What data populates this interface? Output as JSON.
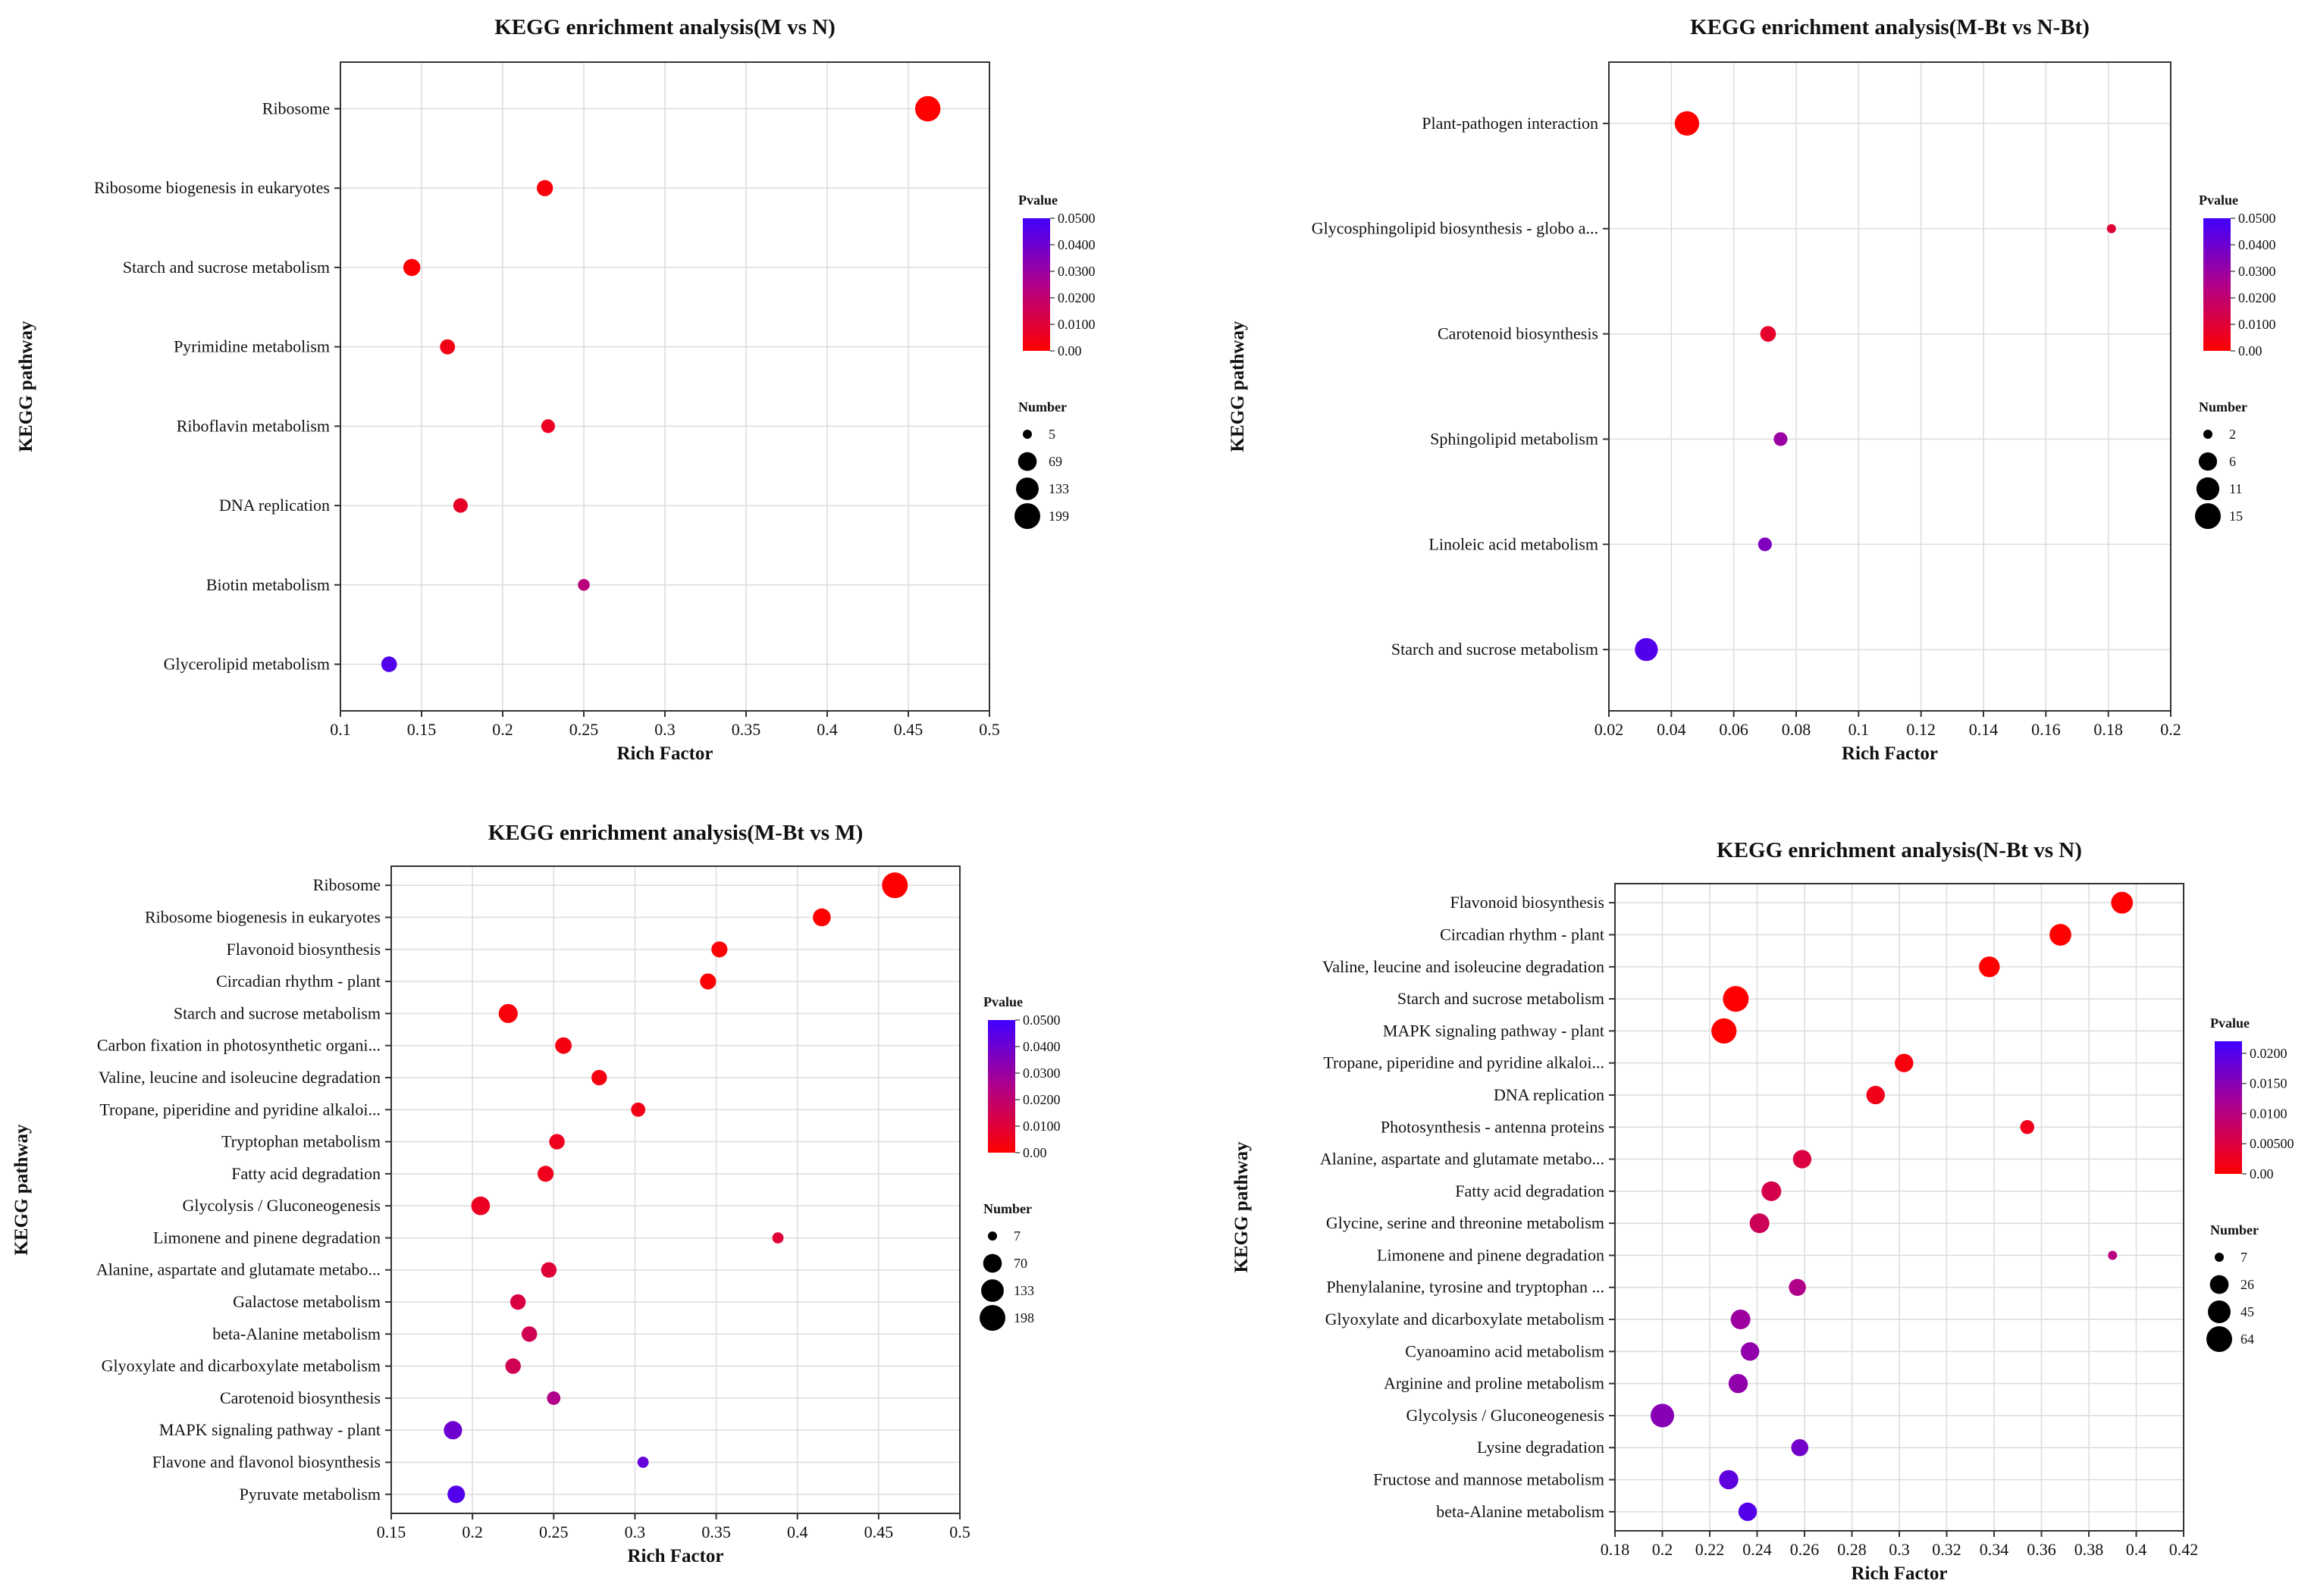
{
  "colors": {
    "low_p": "#ff0000",
    "high_p": "#4000ff",
    "grid": "#dcdcdc",
    "axis": "#333333"
  },
  "chart_data": [
    {
      "type": "scatter",
      "title": "KEGG enrichment analysis(M vs N)",
      "xlabel": "Rich Factor",
      "ylabel": "KEGG pathway",
      "xlim": [
        0.1,
        0.5
      ],
      "xticks": [
        "0.1",
        "0.15",
        "0.2",
        "0.25",
        "0.3",
        "0.35",
        "0.4",
        "0.45",
        "0.5"
      ],
      "grid": true,
      "legend": {
        "pvalue_title": "Pvalue",
        "pvalue_ticks": [
          "0.0500",
          "0.0400",
          "0.0300",
          "0.0200",
          "0.0100",
          "0.00"
        ],
        "pvalue_max": 0.05,
        "number_title": "Number",
        "number_ticks": [
          5,
          69,
          133,
          199
        ]
      },
      "points": [
        {
          "pathway": "Ribosome",
          "rich_factor": 0.462,
          "pvalue": 0.0,
          "number": 190
        },
        {
          "pathway": "Ribosome biogenesis in eukaryotes",
          "rich_factor": 0.226,
          "pvalue": 0.002,
          "number": 40
        },
        {
          "pathway": "Starch and sucrose metabolism",
          "rich_factor": 0.144,
          "pvalue": 0.001,
          "number": 50
        },
        {
          "pathway": "Pyrimidine metabolism",
          "rich_factor": 0.166,
          "pvalue": 0.004,
          "number": 30
        },
        {
          "pathway": "Riboflavin metabolism",
          "rich_factor": 0.228,
          "pvalue": 0.006,
          "number": 20
        },
        {
          "pathway": "DNA replication",
          "rich_factor": 0.174,
          "pvalue": 0.007,
          "number": 25
        },
        {
          "pathway": "Biotin metabolism",
          "rich_factor": 0.25,
          "pvalue": 0.022,
          "number": 10
        },
        {
          "pathway": "Glycerolipid metabolism",
          "rich_factor": 0.13,
          "pvalue": 0.046,
          "number": 35
        }
      ]
    },
    {
      "type": "scatter",
      "title": "KEGG enrichment analysis(M-Bt vs N-Bt)",
      "xlabel": "Rich Factor",
      "ylabel": "KEGG pathway",
      "xlim": [
        0.02,
        0.2
      ],
      "xticks": [
        "0.02",
        "0.04",
        "0.06",
        "0.08",
        "0.1",
        "0.12",
        "0.14",
        "0.16",
        "0.18",
        "0.2"
      ],
      "grid": true,
      "legend": {
        "pvalue_title": "Pvalue",
        "pvalue_ticks": [
          "0.0500",
          "0.0400",
          "0.0300",
          "0.0200",
          "0.0100",
          "0.00"
        ],
        "pvalue_max": 0.05,
        "number_title": "Number",
        "number_ticks": [
          2,
          6,
          11,
          15
        ]
      },
      "points": [
        {
          "pathway": "Plant-pathogen interaction",
          "rich_factor": 0.045,
          "pvalue": 0.0,
          "number": 13
        },
        {
          "pathway": "Glycosphingolipid biosynthesis - globo a...",
          "rich_factor": 0.181,
          "pvalue": 0.01,
          "number": 2
        },
        {
          "pathway": "Carotenoid biosynthesis",
          "rich_factor": 0.071,
          "pvalue": 0.008,
          "number": 4
        },
        {
          "pathway": "Sphingolipid metabolism",
          "rich_factor": 0.075,
          "pvalue": 0.03,
          "number": 3
        },
        {
          "pathway": "Linoleic acid metabolism",
          "rich_factor": 0.07,
          "pvalue": 0.036,
          "number": 3
        },
        {
          "pathway": "Starch and sucrose metabolism",
          "rich_factor": 0.032,
          "pvalue": 0.046,
          "number": 11
        }
      ]
    },
    {
      "type": "scatter",
      "title": "KEGG enrichment analysis(M-Bt vs M)",
      "xlabel": "Rich Factor",
      "ylabel": "KEGG pathway",
      "xlim": [
        0.15,
        0.5
      ],
      "xticks": [
        "0.15",
        "0.2",
        "0.25",
        "0.3",
        "0.35",
        "0.4",
        "0.45",
        "0.5"
      ],
      "grid": true,
      "legend": {
        "pvalue_title": "Pvalue",
        "pvalue_ticks": [
          "0.0500",
          "0.0400",
          "0.0300",
          "0.0200",
          "0.0100",
          "0.00"
        ],
        "pvalue_max": 0.05,
        "number_title": "Number",
        "number_ticks": [
          7,
          70,
          133,
          198
        ]
      },
      "points": [
        {
          "pathway": "Ribosome",
          "rich_factor": 0.46,
          "pvalue": 0.0,
          "number": 198
        },
        {
          "pathway": "Ribosome biogenesis in eukaryotes",
          "rich_factor": 0.415,
          "pvalue": 0.0,
          "number": 60
        },
        {
          "pathway": "Flavonoid biosynthesis",
          "rich_factor": 0.352,
          "pvalue": 0.001,
          "number": 40
        },
        {
          "pathway": "Circadian rhythm - plant",
          "rich_factor": 0.345,
          "pvalue": 0.001,
          "number": 40
        },
        {
          "pathway": "Starch and sucrose metabolism",
          "rich_factor": 0.222,
          "pvalue": 0.002,
          "number": 75
        },
        {
          "pathway": "Carbon fixation in photosynthetic organi...",
          "rich_factor": 0.256,
          "pvalue": 0.003,
          "number": 45
        },
        {
          "pathway": "Valine, leucine and isoleucine degradation",
          "rich_factor": 0.278,
          "pvalue": 0.003,
          "number": 35
        },
        {
          "pathway": "Tropane, piperidine and pyridine alkaloi...",
          "rich_factor": 0.302,
          "pvalue": 0.004,
          "number": 25
        },
        {
          "pathway": "Tryptophan metabolism",
          "rich_factor": 0.252,
          "pvalue": 0.005,
          "number": 35
        },
        {
          "pathway": "Fatty acid degradation",
          "rich_factor": 0.245,
          "pvalue": 0.005,
          "number": 40
        },
        {
          "pathway": "Glycolysis / Gluconeogenesis",
          "rich_factor": 0.205,
          "pvalue": 0.006,
          "number": 70
        },
        {
          "pathway": "Limonene and pinene degradation",
          "rich_factor": 0.388,
          "pvalue": 0.01,
          "number": 10
        },
        {
          "pathway": "Alanine, aspartate and glutamate metabo...",
          "rich_factor": 0.247,
          "pvalue": 0.01,
          "number": 35
        },
        {
          "pathway": "Galactose metabolism",
          "rich_factor": 0.228,
          "pvalue": 0.012,
          "number": 35
        },
        {
          "pathway": "beta-Alanine metabolism",
          "rich_factor": 0.235,
          "pvalue": 0.015,
          "number": 35
        },
        {
          "pathway": "Glyoxylate and dicarboxylate metabolism",
          "rich_factor": 0.225,
          "pvalue": 0.015,
          "number": 35
        },
        {
          "pathway": "Carotenoid biosynthesis",
          "rich_factor": 0.25,
          "pvalue": 0.025,
          "number": 20
        },
        {
          "pathway": "MAPK signaling pathway - plant",
          "rich_factor": 0.188,
          "pvalue": 0.04,
          "number": 65
        },
        {
          "pathway": "Flavone and flavonol biosynthesis",
          "rich_factor": 0.305,
          "pvalue": 0.042,
          "number": 10
        },
        {
          "pathway": "Pyruvate metabolism",
          "rich_factor": 0.19,
          "pvalue": 0.046,
          "number": 55
        }
      ]
    },
    {
      "type": "scatter",
      "title": "KEGG enrichment analysis(N-Bt vs N)",
      "xlabel": "Rich Factor",
      "ylabel": "KEGG pathway",
      "xlim": [
        0.18,
        0.42
      ],
      "xticks": [
        "0.18",
        "0.2",
        "0.22",
        "0.24",
        "0.26",
        "0.28",
        "0.3",
        "0.32",
        "0.34",
        "0.36",
        "0.38",
        "0.4",
        "0.42"
      ],
      "grid": true,
      "legend": {
        "pvalue_title": "Pvalue",
        "pvalue_ticks": [
          "0.0200",
          "0.0150",
          "0.0100",
          "0.00500",
          "0.00"
        ],
        "pvalue_max": 0.022,
        "number_title": "Number",
        "number_ticks": [
          7,
          26,
          45,
          64
        ]
      },
      "points": [
        {
          "pathway": "Flavonoid biosynthesis",
          "rich_factor": 0.394,
          "pvalue": 0.0,
          "number": 40
        },
        {
          "pathway": "Circadian rhythm - plant",
          "rich_factor": 0.368,
          "pvalue": 0.0,
          "number": 40
        },
        {
          "pathway": "Valine, leucine and isoleucine degradation",
          "rich_factor": 0.338,
          "pvalue": 0.0,
          "number": 35
        },
        {
          "pathway": "Starch and sucrose metabolism",
          "rich_factor": 0.231,
          "pvalue": 0.0,
          "number": 64
        },
        {
          "pathway": "MAPK signaling pathway - plant",
          "rich_factor": 0.226,
          "pvalue": 0.0,
          "number": 60
        },
        {
          "pathway": "Tropane, piperidine and pyridine alkaloi...",
          "rich_factor": 0.302,
          "pvalue": 0.001,
          "number": 25
        },
        {
          "pathway": "DNA replication",
          "rich_factor": 0.29,
          "pvalue": 0.002,
          "number": 25
        },
        {
          "pathway": "Photosynthesis - antenna proteins",
          "rich_factor": 0.354,
          "pvalue": 0.002,
          "number": 12
        },
        {
          "pathway": "Alanine, aspartate and glutamate metabo...",
          "rich_factor": 0.259,
          "pvalue": 0.005,
          "number": 25
        },
        {
          "pathway": "Fatty acid degradation",
          "rich_factor": 0.246,
          "pvalue": 0.006,
          "number": 30
        },
        {
          "pathway": "Glycine, serine and threonine metabolism",
          "rich_factor": 0.241,
          "pvalue": 0.007,
          "number": 30
        },
        {
          "pathway": "Limonene and pinene degradation",
          "rich_factor": 0.39,
          "pvalue": 0.01,
          "number": 7
        },
        {
          "pathway": "Phenylalanine, tyrosine and tryptophan ...",
          "rich_factor": 0.257,
          "pvalue": 0.011,
          "number": 20
        },
        {
          "pathway": "Glyoxylate and dicarboxylate metabolism",
          "rich_factor": 0.233,
          "pvalue": 0.013,
          "number": 30
        },
        {
          "pathway": "Cyanoamino acid metabolism",
          "rich_factor": 0.237,
          "pvalue": 0.014,
          "number": 25
        },
        {
          "pathway": "Arginine and proline metabolism",
          "rich_factor": 0.232,
          "pvalue": 0.014,
          "number": 28
        },
        {
          "pathway": "Glycolysis / Gluconeogenesis",
          "rich_factor": 0.2,
          "pvalue": 0.015,
          "number": 50
        },
        {
          "pathway": "Lysine degradation",
          "rich_factor": 0.258,
          "pvalue": 0.017,
          "number": 20
        },
        {
          "pathway": "Fructose and mannose metabolism",
          "rich_factor": 0.228,
          "pvalue": 0.019,
          "number": 28
        },
        {
          "pathway": "beta-Alanine metabolism",
          "rich_factor": 0.236,
          "pvalue": 0.02,
          "number": 25
        }
      ]
    }
  ]
}
